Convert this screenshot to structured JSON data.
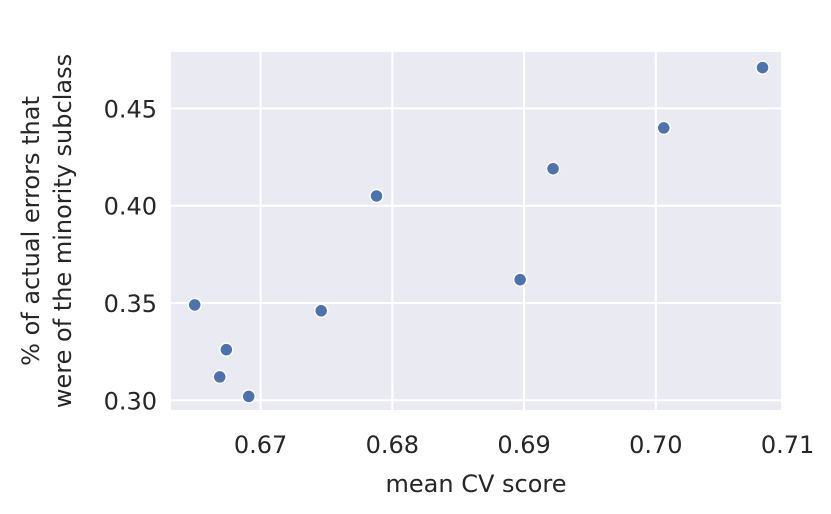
{
  "chart_data": {
    "type": "scatter",
    "title": "",
    "xlabel": "mean CV score",
    "ylabel_lines": [
      "% of actual errors that",
      "were of the minority subclass"
    ],
    "xlim": [
      0.6632,
      0.7095
    ],
    "ylim": [
      0.295,
      0.479
    ],
    "x_ticks": [
      0.67,
      0.68,
      0.69,
      0.7,
      0.71
    ],
    "x_tick_labels": [
      "0.67",
      "0.68",
      "0.69",
      "0.70",
      "0.71"
    ],
    "y_ticks": [
      0.3,
      0.35,
      0.4,
      0.45
    ],
    "y_tick_labels": [
      "0.30",
      "0.35",
      "0.40",
      "0.45"
    ],
    "grid": true,
    "colors": {
      "background": "#eaeaf2",
      "grid": "#ffffff",
      "point": "#4c72b0",
      "point_edge": "#ffffff",
      "text": "#262626"
    },
    "points": [
      {
        "x": 0.665,
        "y": 0.349
      },
      {
        "x": 0.6669,
        "y": 0.312
      },
      {
        "x": 0.6674,
        "y": 0.326
      },
      {
        "x": 0.6691,
        "y": 0.302
      },
      {
        "x": 0.6746,
        "y": 0.346
      },
      {
        "x": 0.6788,
        "y": 0.405
      },
      {
        "x": 0.6897,
        "y": 0.362
      },
      {
        "x": 0.6922,
        "y": 0.419
      },
      {
        "x": 0.7006,
        "y": 0.44
      },
      {
        "x": 0.7081,
        "y": 0.471
      }
    ]
  }
}
